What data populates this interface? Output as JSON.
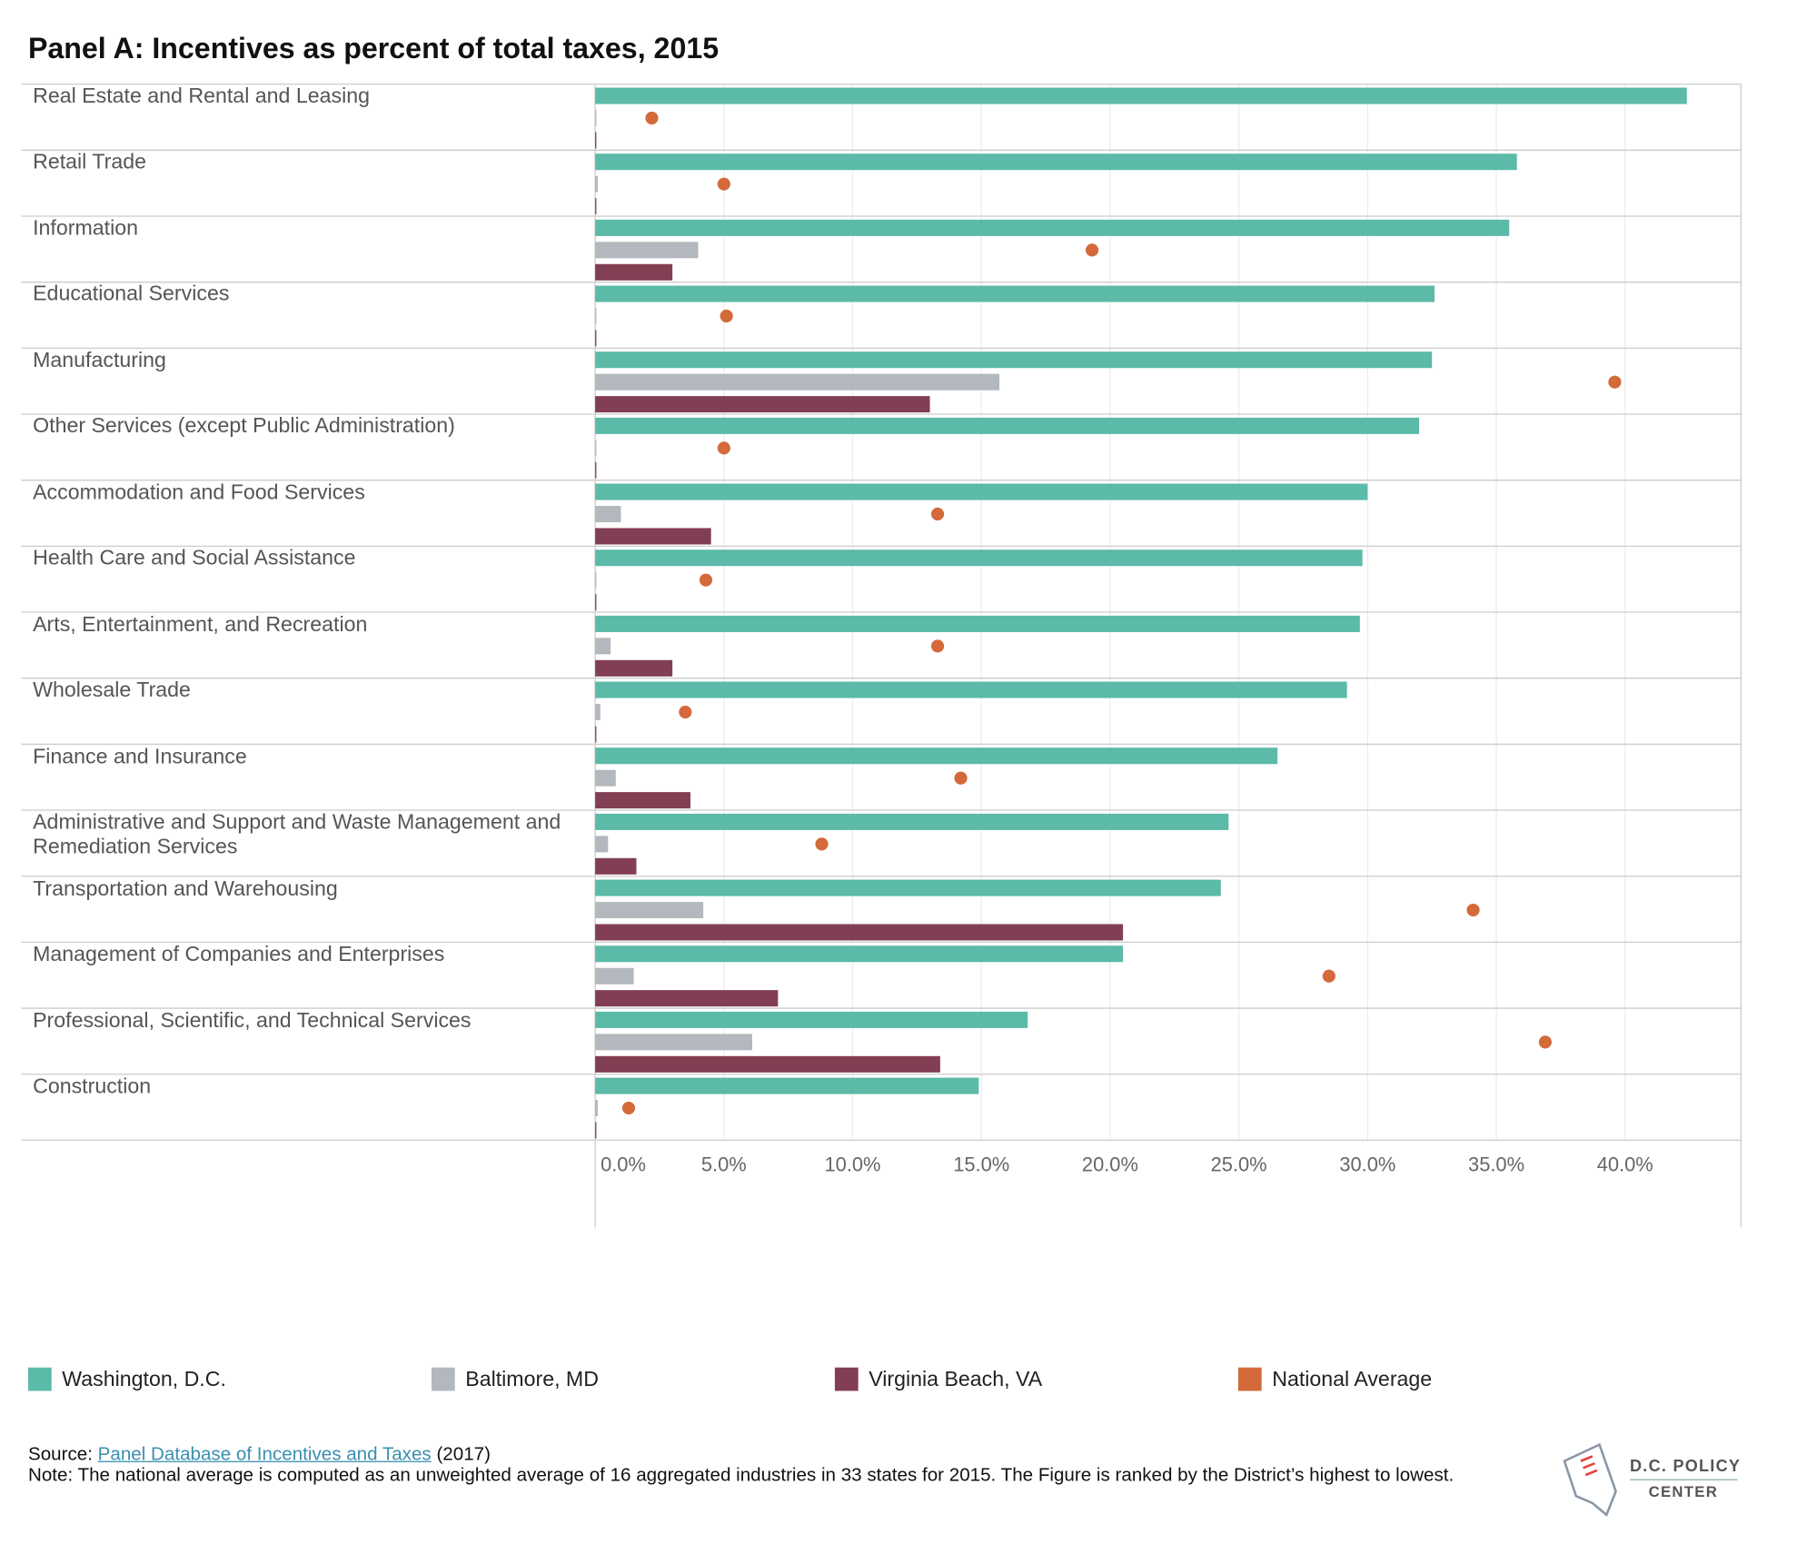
{
  "chart_data": {
    "type": "bar",
    "orientation": "horizontal",
    "title": "Panel A: Incentives as percent of total taxes, 2015",
    "categories": [
      "Real Estate and Rental and Leasing",
      "Retail Trade",
      "Information",
      "Educational Services",
      "Manufacturing",
      "Other Services (except Public Administration)",
      "Accommodation and Food Services",
      "Health Care and Social Assistance",
      "Arts, Entertainment, and Recreation",
      "Wholesale Trade",
      "Finance and Insurance",
      "Administrative and Support and Waste Management and Remediation Services",
      "Transportation and Warehousing",
      "Management of Companies and Enterprises",
      "Professional, Scientific, and Technical Services",
      "Construction"
    ],
    "series": [
      {
        "name": "Washington, D.C.",
        "color": "#5bbaa8",
        "kind": "bar",
        "values": [
          42.4,
          35.8,
          35.5,
          32.6,
          32.5,
          32.0,
          30.0,
          29.8,
          29.7,
          29.2,
          26.5,
          24.6,
          24.3,
          20.5,
          16.8,
          14.9
        ]
      },
      {
        "name": "Baltimore, MD",
        "color": "#b3b8be",
        "kind": "bar",
        "values": [
          0,
          0.1,
          4.0,
          0,
          15.7,
          0,
          1.0,
          0,
          0.6,
          0.2,
          0.8,
          0.5,
          4.2,
          1.5,
          6.1,
          0.1
        ]
      },
      {
        "name": "Virginia Beach, VA",
        "color": "#823e52",
        "kind": "bar",
        "values": [
          0,
          0,
          3.0,
          0,
          13.0,
          0,
          4.5,
          0,
          3.0,
          0,
          3.7,
          1.6,
          20.5,
          7.1,
          13.4,
          0
        ]
      },
      {
        "name": "National Average",
        "color": "#d4693a",
        "kind": "dot",
        "values": [
          2.2,
          5.0,
          19.3,
          5.1,
          39.6,
          5.0,
          13.3,
          4.3,
          13.3,
          3.5,
          14.2,
          8.8,
          34.1,
          28.5,
          36.9,
          1.3
        ]
      }
    ],
    "xlim": [
      0,
      44.5
    ],
    "xticks": [
      {
        "value": 0,
        "label": "0.0%"
      },
      {
        "value": 5,
        "label": "5.0%"
      },
      {
        "value": 10,
        "label": "10.0%"
      },
      {
        "value": 15,
        "label": "15.0%"
      },
      {
        "value": 20,
        "label": "20.0%"
      },
      {
        "value": 25,
        "label": "25.0%"
      },
      {
        "value": 30,
        "label": "30.0%"
      },
      {
        "value": 35,
        "label": "35.0%"
      },
      {
        "value": 40,
        "label": "40.0%"
      }
    ],
    "grid": true,
    "legend": "bottom"
  },
  "footer": {
    "source_label": "Source:",
    "source_link": "Panel Database of Incentives and Taxes",
    "source_year": "(2017)",
    "note": "Note: The national average is computed as an unweighted average of 16 aggregated industries in 33 states for 2015. The Figure is ranked by the District’s highest to lowest."
  },
  "logo": {
    "line1": "D.C. POLICY",
    "line2": "CENTER"
  }
}
